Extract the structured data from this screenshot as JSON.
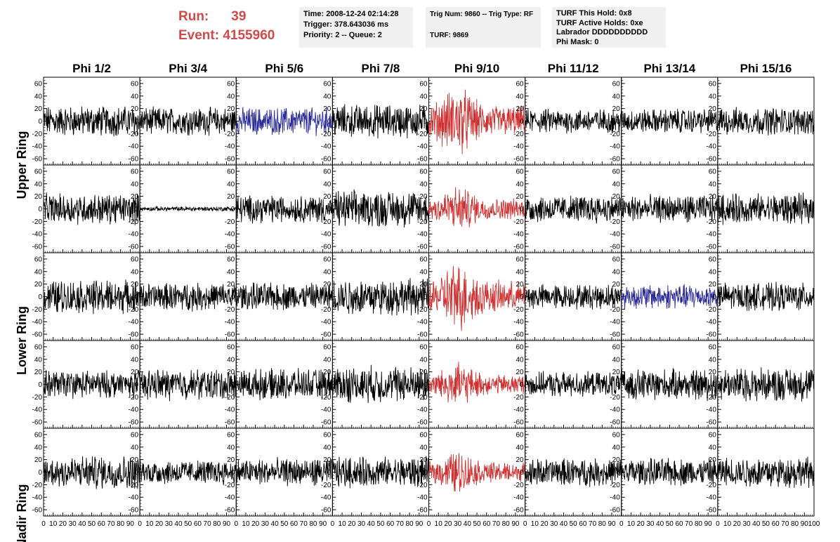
{
  "run_info": {
    "run_label": "Run:",
    "run_value": "39",
    "event_label": "Event:",
    "event_value": "4155960"
  },
  "info_boxes": [
    {
      "lines": [
        "Time: 2008-12-24 02:14:28",
        "Trigger: 378.643036 ms",
        "Priority: 2 -- Queue: 2"
      ]
    },
    {
      "lines": [
        "Trig Num: 9860 -- Trig Type: RF",
        "",
        "TURF: 9869"
      ]
    },
    {
      "lines": [
        "TURF This Hold: 0x8",
        "TURF Active Holds: 0xe",
        "Labrador DDDDDDDDDD",
        "Phi Mask: 0"
      ]
    }
  ],
  "colors": {
    "normal": "#000000",
    "triggered": "#d03030",
    "highlight": "#2a2a9a",
    "run_text": "#d04a4a",
    "info_bg": "#f0f0f0"
  },
  "chart_data": {
    "type": "line",
    "columns": [
      "Phi 1/2",
      "Phi 3/4",
      "Phi 5/6",
      "Phi 7/8",
      "Phi 9/10",
      "Phi 11/12",
      "Phi 13/14",
      "Phi 15/16"
    ],
    "rows": [
      "Upper Ring",
      "",
      "Lower Ring",
      "",
      "Nadir Ring"
    ],
    "xlim": [
      0,
      100
    ],
    "ylim": [
      -70,
      70
    ],
    "x_ticks": [
      0,
      10,
      20,
      30,
      40,
      50,
      60,
      70,
      80,
      90,
      100
    ],
    "y_ticks": [
      -60,
      -40,
      -20,
      0,
      20,
      40,
      60
    ],
    "panels": [
      [
        {
          "c": "normal",
          "a": 20
        },
        {
          "c": "normal",
          "a": 18
        },
        {
          "c": "highlight",
          "a": 18
        },
        {
          "c": "normal",
          "a": 22
        },
        {
          "c": "triggered",
          "a": 45
        },
        {
          "c": "normal",
          "a": 16
        },
        {
          "c": "normal",
          "a": 16
        },
        {
          "c": "normal",
          "a": 18
        }
      ],
      [
        {
          "c": "normal",
          "a": 20
        },
        {
          "c": "normal",
          "a": 3
        },
        {
          "c": "normal",
          "a": 18
        },
        {
          "c": "normal",
          "a": 24
        },
        {
          "c": "triggered",
          "a": 30
        },
        {
          "c": "normal",
          "a": 18
        },
        {
          "c": "normal",
          "a": 18
        },
        {
          "c": "normal",
          "a": 20
        }
      ],
      [
        {
          "c": "normal",
          "a": 22
        },
        {
          "c": "normal",
          "a": 18
        },
        {
          "c": "normal",
          "a": 18
        },
        {
          "c": "normal",
          "a": 24
        },
        {
          "c": "triggered",
          "a": 45
        },
        {
          "c": "normal",
          "a": 16
        },
        {
          "c": "highlight",
          "a": 16
        },
        {
          "c": "normal",
          "a": 18
        }
      ],
      [
        {
          "c": "normal",
          "a": 18
        },
        {
          "c": "normal",
          "a": 20
        },
        {
          "c": "normal",
          "a": 20
        },
        {
          "c": "normal",
          "a": 24
        },
        {
          "c": "triggered",
          "a": 28
        },
        {
          "c": "normal",
          "a": 16
        },
        {
          "c": "normal",
          "a": 20
        },
        {
          "c": "normal",
          "a": 22
        }
      ],
      [
        {
          "c": "normal",
          "a": 22
        },
        {
          "c": "normal",
          "a": 16
        },
        {
          "c": "normal",
          "a": 18
        },
        {
          "c": "normal",
          "a": 20
        },
        {
          "c": "triggered",
          "a": 28
        },
        {
          "c": "normal",
          "a": 18
        },
        {
          "c": "normal",
          "a": 18
        },
        {
          "c": "normal",
          "a": 20
        }
      ]
    ]
  }
}
